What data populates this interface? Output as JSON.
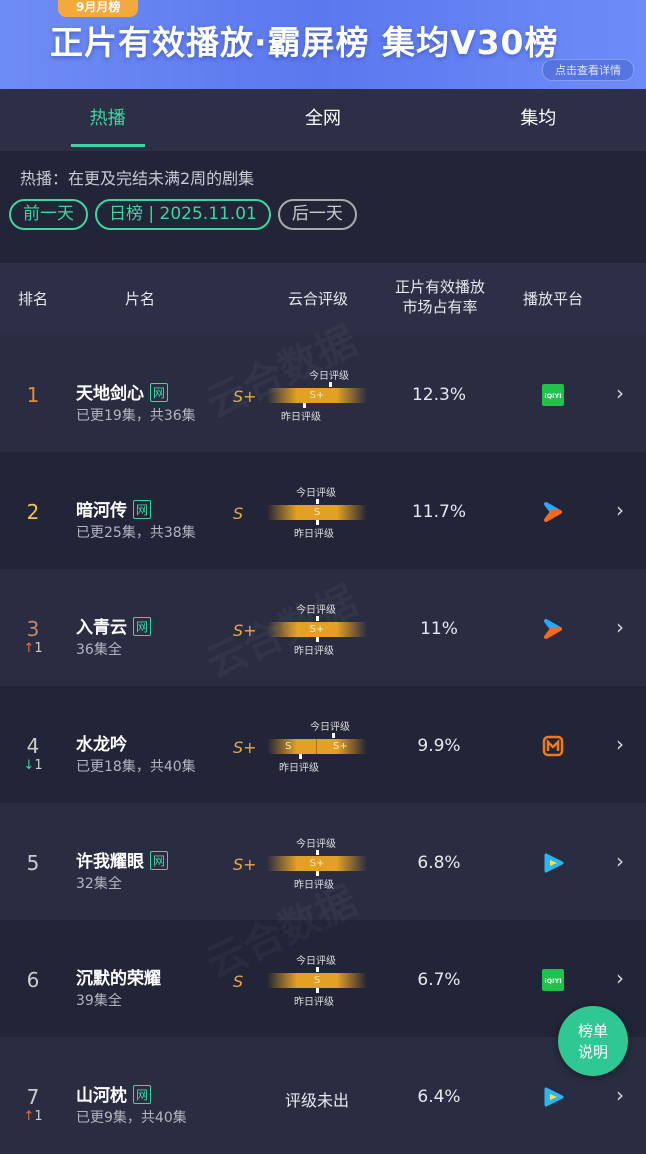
{
  "banner": {
    "badge": "9月月榜",
    "title": "正片有效播放·霸屏榜 集均V30榜",
    "detail": "点击查看详情"
  },
  "tabs": [
    {
      "label": "热播",
      "active": true
    },
    {
      "label": "全网"
    },
    {
      "label": "集均"
    }
  ],
  "description": "热播：在更及完结未满2周的剧集",
  "date_nav": {
    "prev": "前一天",
    "current": "日榜 | 2025.11.01",
    "next": "后一天"
  },
  "columns": {
    "rank": "排名",
    "title": "片名",
    "rating": "云合评级",
    "share_line1": "正片有效播放",
    "share_line2": "市场占有率",
    "platform": "播放平台"
  },
  "rating_labels": {
    "today": "今日评级",
    "yesterday": "昨日评级"
  },
  "rows": [
    {
      "rank": "1",
      "change": "",
      "title": "天地剑心",
      "tag": "网",
      "episodes": "已更19集，共36集",
      "grade": "S+",
      "bar": "S+",
      "share": "12.3%",
      "platform": "iqiyi"
    },
    {
      "rank": "2",
      "change": "",
      "title": "暗河传",
      "tag": "网",
      "episodes": "已更25集，共38集",
      "grade": "S",
      "bar": "S",
      "share": "11.7%",
      "platform": "youku"
    },
    {
      "rank": "3",
      "change": "1",
      "direction": "up",
      "title": "入青云",
      "tag": "网",
      "episodes": "36集全",
      "grade": "S+",
      "bar": "S+",
      "share": "11%",
      "platform": "youku"
    },
    {
      "rank": "4",
      "change": "1",
      "direction": "down",
      "title": "水龙吟",
      "tag": "",
      "episodes": "已更18集，共40集",
      "grade": "S+",
      "bar_left": "S",
      "bar_right": "S+",
      "share": "9.9%",
      "platform": "mango"
    },
    {
      "rank": "5",
      "change": "",
      "title": "许我耀眼",
      "tag": "网",
      "episodes": "32集全",
      "grade": "S+",
      "bar": "S+",
      "share": "6.8%",
      "platform": "tencent"
    },
    {
      "rank": "6",
      "change": "",
      "title": "沉默的荣耀",
      "tag": "",
      "episodes": "39集全",
      "grade": "S",
      "bar": "S",
      "share": "6.7%",
      "platform": "iqiyi"
    },
    {
      "rank": "7",
      "change": "1",
      "direction": "up",
      "title": "山河枕",
      "tag": "网",
      "episodes": "已更9集，共40集",
      "grade": "",
      "no_rating": "评级未出",
      "share": "6.4%",
      "platform": "tencent"
    }
  ],
  "explain_button": {
    "line1": "榜单",
    "line2": "说明"
  },
  "watermark": "云合数据 ENLIGHTENT",
  "colors": {
    "accent": "#3dd6a0",
    "gold": "#e2a024",
    "rank1": "#e9883c",
    "rank2": "#f2c35e",
    "rank3": "#c98668"
  }
}
